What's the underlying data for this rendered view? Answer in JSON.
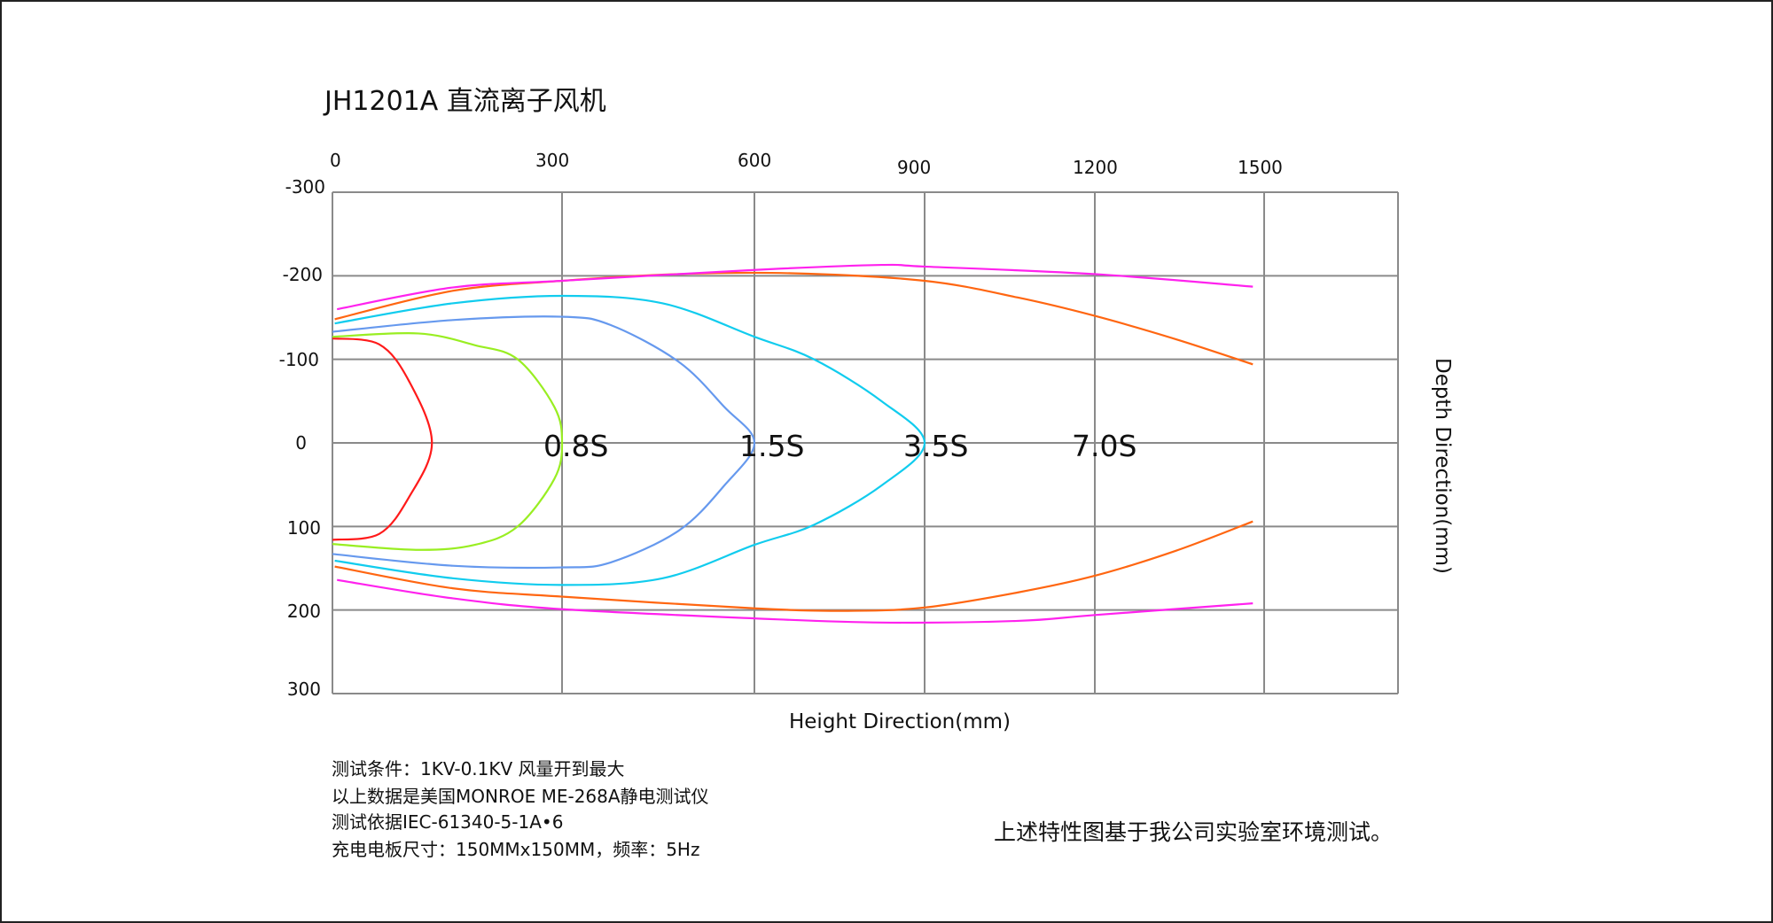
{
  "chart_data": {
    "type": "line",
    "title": "JH1201A 直流离子风机",
    "xlabel": "Height Direction(mm)",
    "ylabel": "Depth Direction(mm)",
    "x_ticks": [
      "0",
      "300",
      "600",
      "900",
      "1200",
      "1500"
    ],
    "y_ticks": [
      "-300",
      "-200",
      "-100",
      "0",
      "100",
      "200",
      "300"
    ],
    "xlim": [
      0,
      1500
    ],
    "ylim": [
      -300,
      300
    ],
    "grid": true,
    "annotations": [
      {
        "text": "0.8S",
        "x": 300,
        "y": 0
      },
      {
        "text": "1.5S",
        "x": 600,
        "y": 0
      },
      {
        "text": "3.5S",
        "x": 900,
        "y": 0
      },
      {
        "text": "7.0S",
        "x": 1200,
        "y": 0
      }
    ],
    "series": [
      {
        "color": "#ff1a1a",
        "points": [
          [
            0,
            -125
          ],
          [
            61,
            -118
          ],
          [
            100,
            -74
          ],
          [
            130,
            0
          ],
          [
            100,
            65
          ],
          [
            61,
            109
          ],
          [
            0,
            116
          ]
        ]
      },
      {
        "color": "#99ee22",
        "points": [
          [
            0,
            -127
          ],
          [
            112,
            -131
          ],
          [
            186,
            -117
          ],
          [
            242,
            -100
          ],
          [
            290,
            -43
          ],
          [
            300,
            0
          ],
          [
            290,
            43
          ],
          [
            242,
            100
          ],
          [
            186,
            122
          ],
          [
            112,
            128
          ],
          [
            0,
            121
          ]
        ]
      },
      {
        "color": "#6699ee",
        "points": [
          [
            0,
            -133
          ],
          [
            157,
            -147
          ],
          [
            300,
            -151
          ],
          [
            376,
            -141
          ],
          [
            482,
            -97
          ],
          [
            553,
            -43
          ],
          [
            600,
            0
          ],
          [
            553,
            51
          ],
          [
            482,
            105
          ],
          [
            376,
            143
          ],
          [
            300,
            149
          ],
          [
            157,
            147
          ],
          [
            0,
            133
          ]
        ]
      },
      {
        "color": "#11ccee",
        "points": [
          [
            3,
            -143
          ],
          [
            157,
            -167
          ],
          [
            300,
            -176
          ],
          [
            457,
            -167
          ],
          [
            600,
            -127
          ],
          [
            705,
            -100
          ],
          [
            824,
            -50
          ],
          [
            900,
            0
          ],
          [
            824,
            51
          ],
          [
            705,
            98
          ],
          [
            600,
            122
          ],
          [
            457,
            162
          ],
          [
            300,
            170
          ],
          [
            157,
            162
          ],
          [
            3,
            141
          ]
        ]
      },
      {
        "color": "#ff6611",
        "points": [
          [
            3,
            -148
          ],
          [
            157,
            -182
          ],
          [
            300,
            -194
          ],
          [
            482,
            -202
          ],
          [
            666,
            -203
          ],
          [
            900,
            -194
          ],
          [
            1064,
            -174
          ],
          [
            1200,
            -152
          ],
          [
            1344,
            -124
          ],
          [
            1480,
            -94
          ]
        ]
      },
      {
        "color": "#ff6611",
        "points": [
          [
            3,
            148
          ],
          [
            157,
            174
          ],
          [
            300,
            184
          ],
          [
            600,
            198
          ],
          [
            765,
            201
          ],
          [
            900,
            197
          ],
          [
            1064,
            179
          ],
          [
            1200,
            159
          ],
          [
            1344,
            129
          ],
          [
            1480,
            94
          ]
        ]
      },
      {
        "color": "#ff22ee",
        "points": [
          [
            6,
            -160
          ],
          [
            157,
            -186
          ],
          [
            300,
            -194
          ],
          [
            600,
            -207
          ],
          [
            824,
            -213
          ],
          [
            900,
            -211
          ],
          [
            1200,
            -202
          ],
          [
            1480,
            -187
          ]
        ]
      },
      {
        "color": "#ff22ee",
        "points": [
          [
            6,
            164
          ],
          [
            157,
            186
          ],
          [
            300,
            199
          ],
          [
            600,
            210
          ],
          [
            824,
            215
          ],
          [
            1064,
            213
          ],
          [
            1200,
            206
          ],
          [
            1480,
            192
          ]
        ]
      }
    ]
  },
  "notes": [
    "测试条件：1KV-0.1KV  风量开到最大",
    "以上数据是美国MONROE ME-268A静电测试仪",
    "测试依据IEC-61340-5-1A•6",
    "充电电板尺寸：150MMx150MM，频率：5Hz"
  ],
  "footer_note": "上述特性图基于我公司实验室环境测试。"
}
